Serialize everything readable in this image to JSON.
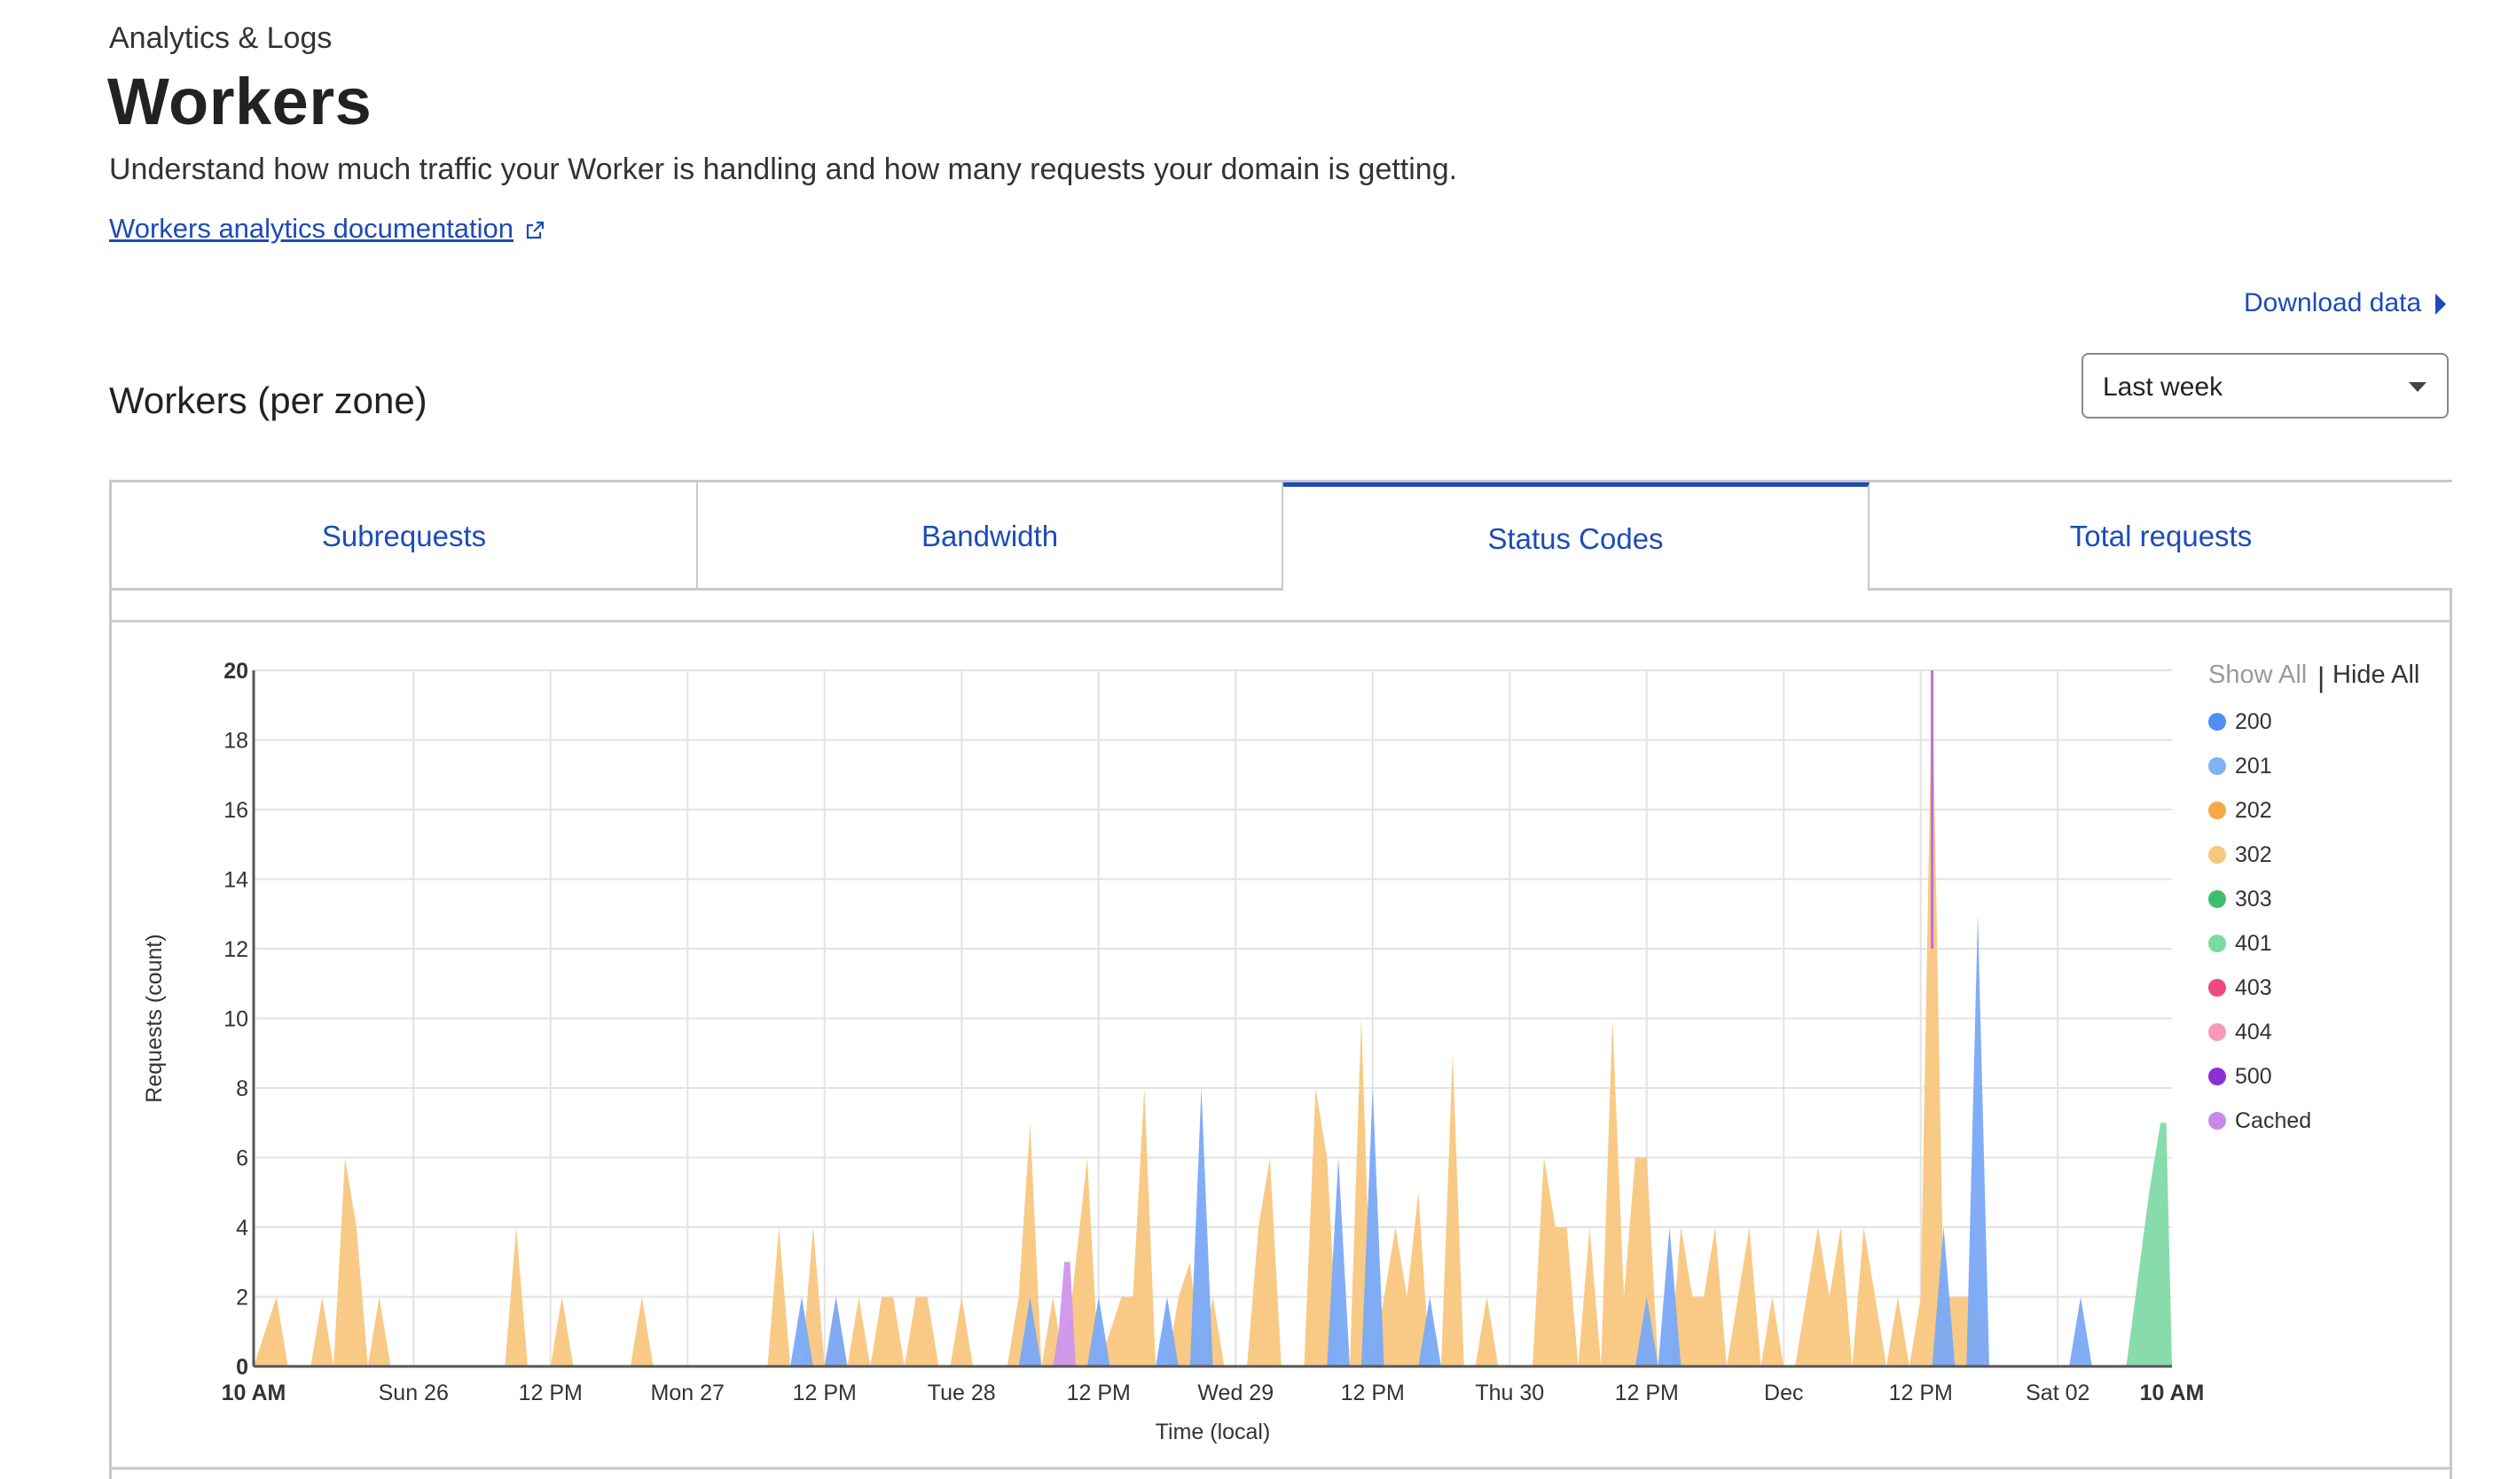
{
  "header": {
    "breadcrumb": "Analytics & Logs",
    "title": "Workers",
    "description": "Understand how much traffic your Worker is handling and how many requests your domain is getting.",
    "doc_link": "Workers analytics documentation",
    "download_label": "Download data"
  },
  "section": {
    "title": "Workers (per zone)",
    "time_range": "Last week"
  },
  "tabs": [
    {
      "label": "Subrequests",
      "active": false
    },
    {
      "label": "Bandwidth",
      "active": false
    },
    {
      "label": "Status Codes",
      "active": true
    },
    {
      "label": "Total requests",
      "active": false
    }
  ],
  "legend": {
    "show_all": "Show All",
    "separator": "|",
    "hide_all": "Hide All",
    "items": [
      {
        "label": "200",
        "color": "#4f8ef7"
      },
      {
        "label": "201",
        "color": "#7fb2f5"
      },
      {
        "label": "202",
        "color": "#f5a843"
      },
      {
        "label": "302",
        "color": "#f8c77e"
      },
      {
        "label": "303",
        "color": "#3cc06e"
      },
      {
        "label": "401",
        "color": "#7adba0"
      },
      {
        "label": "403",
        "color": "#f0497e"
      },
      {
        "label": "404",
        "color": "#f59ab8"
      },
      {
        "label": "500",
        "color": "#8b2fd6"
      },
      {
        "label": "Cached",
        "color": "#c88ae8"
      }
    ]
  },
  "chart_data": {
    "type": "area",
    "ylabel": "Requests (count)",
    "xlabel": "Time (local)",
    "ylim": [
      0,
      20
    ],
    "y_ticks": [
      0,
      2,
      4,
      6,
      8,
      10,
      12,
      14,
      16,
      18,
      20
    ],
    "x_domain": [
      0,
      168
    ],
    "x_ticks": [
      {
        "label": "10 AM",
        "x": 0,
        "bold": true
      },
      {
        "label": "Sun 26",
        "x": 14,
        "bold": false
      },
      {
        "label": "12 PM",
        "x": 26,
        "bold": false
      },
      {
        "label": "Mon 27",
        "x": 38,
        "bold": false
      },
      {
        "label": "12 PM",
        "x": 50,
        "bold": false
      },
      {
        "label": "Tue 28",
        "x": 62,
        "bold": false
      },
      {
        "label": "12 PM",
        "x": 74,
        "bold": false
      },
      {
        "label": "Wed 29",
        "x": 86,
        "bold": false
      },
      {
        "label": "12 PM",
        "x": 98,
        "bold": false
      },
      {
        "label": "Thu 30",
        "x": 110,
        "bold": false
      },
      {
        "label": "12 PM",
        "x": 122,
        "bold": false
      },
      {
        "label": "Dec",
        "x": 134,
        "bold": false
      },
      {
        "label": "12 PM",
        "x": 146,
        "bold": false
      },
      {
        "label": "Sat 02",
        "x": 158,
        "bold": false
      },
      {
        "label": "10 AM",
        "x": 168,
        "bold": true
      }
    ],
    "series": [
      {
        "name": "302",
        "color": "#f8c77e",
        "points": [
          [
            0,
            0
          ],
          [
            2,
            2
          ],
          [
            3,
            0
          ],
          [
            5,
            0
          ],
          [
            6,
            2
          ],
          [
            7,
            0
          ],
          [
            8,
            6
          ],
          [
            9,
            4
          ],
          [
            10,
            0
          ],
          [
            11,
            2
          ],
          [
            12,
            0
          ],
          [
            22,
            0
          ],
          [
            23,
            4
          ],
          [
            24,
            0
          ],
          [
            26,
            0
          ],
          [
            27,
            2
          ],
          [
            28,
            0
          ],
          [
            33,
            0
          ],
          [
            34,
            2
          ],
          [
            35,
            0
          ],
          [
            45,
            0
          ],
          [
            46,
            4
          ],
          [
            47,
            0
          ],
          [
            48,
            0
          ],
          [
            49,
            4
          ],
          [
            50,
            0
          ],
          [
            51,
            2
          ],
          [
            52,
            0
          ],
          [
            53,
            2
          ],
          [
            54,
            0
          ],
          [
            55,
            2
          ],
          [
            56,
            2
          ],
          [
            57,
            0
          ],
          [
            58,
            2
          ],
          [
            59,
            2
          ],
          [
            60,
            0
          ],
          [
            61,
            0
          ],
          [
            62,
            2
          ],
          [
            63,
            0
          ],
          [
            66,
            0
          ],
          [
            67,
            2
          ],
          [
            68,
            7
          ],
          [
            69,
            0
          ],
          [
            70,
            2
          ],
          [
            71,
            0
          ],
          [
            73,
            6
          ],
          [
            74,
            0
          ],
          [
            76,
            2
          ],
          [
            77,
            2
          ],
          [
            78,
            8
          ],
          [
            79,
            0
          ],
          [
            80,
            0
          ],
          [
            81,
            2
          ],
          [
            82,
            3
          ],
          [
            83,
            0
          ],
          [
            84,
            2
          ],
          [
            85,
            0
          ],
          [
            87,
            0
          ],
          [
            88,
            4
          ],
          [
            89,
            6
          ],
          [
            90,
            0
          ],
          [
            92,
            0
          ],
          [
            93,
            8
          ],
          [
            94,
            6
          ],
          [
            95,
            0
          ],
          [
            96,
            0
          ],
          [
            97,
            10
          ],
          [
            98,
            0
          ],
          [
            99,
            2
          ],
          [
            100,
            4
          ],
          [
            101,
            2
          ],
          [
            102,
            5
          ],
          [
            103,
            0
          ],
          [
            104,
            0
          ],
          [
            105,
            9
          ],
          [
            106,
            0
          ],
          [
            107,
            0
          ],
          [
            108,
            2
          ],
          [
            109,
            0
          ],
          [
            112,
            0
          ],
          [
            113,
            6
          ],
          [
            114,
            4
          ],
          [
            115,
            4
          ],
          [
            116,
            0
          ],
          [
            117,
            4
          ],
          [
            118,
            0
          ],
          [
            119,
            10
          ],
          [
            120,
            2
          ],
          [
            121,
            6
          ],
          [
            122,
            6
          ],
          [
            123,
            0
          ],
          [
            124,
            0
          ],
          [
            125,
            4
          ],
          [
            126,
            2
          ],
          [
            127,
            2
          ],
          [
            128,
            4
          ],
          [
            129,
            0
          ],
          [
            130,
            2
          ],
          [
            131,
            4
          ],
          [
            132,
            0
          ],
          [
            133,
            2
          ],
          [
            134,
            0
          ],
          [
            135,
            0
          ],
          [
            136,
            2
          ],
          [
            137,
            4
          ],
          [
            138,
            2
          ],
          [
            139,
            4
          ],
          [
            140,
            0
          ],
          [
            141,
            4
          ],
          [
            142,
            2
          ],
          [
            143,
            0
          ],
          [
            144,
            2
          ],
          [
            145,
            0
          ],
          [
            146,
            2
          ],
          [
            147,
            20
          ],
          [
            148,
            2
          ],
          [
            149,
            2
          ],
          [
            150,
            2
          ],
          [
            151,
            2
          ],
          [
            152,
            0
          ],
          [
            168,
            0
          ]
        ]
      },
      {
        "name": "200",
        "color": "#7aa9f7",
        "points": [
          [
            0,
            0
          ],
          [
            47,
            0
          ],
          [
            48,
            2
          ],
          [
            49,
            0
          ],
          [
            50,
            0
          ],
          [
            51,
            2
          ],
          [
            52,
            0
          ],
          [
            67,
            0
          ],
          [
            68,
            2
          ],
          [
            69,
            0
          ],
          [
            73,
            0
          ],
          [
            74,
            2
          ],
          [
            75,
            0
          ],
          [
            79,
            0
          ],
          [
            80,
            2
          ],
          [
            81,
            0
          ],
          [
            82,
            0
          ],
          [
            83,
            8
          ],
          [
            84,
            0
          ],
          [
            94,
            0
          ],
          [
            95,
            6
          ],
          [
            96,
            0
          ],
          [
            97,
            0
          ],
          [
            98,
            8
          ],
          [
            99,
            0
          ],
          [
            102,
            0
          ],
          [
            103,
            2
          ],
          [
            104,
            0
          ],
          [
            121,
            0
          ],
          [
            122,
            2
          ],
          [
            123,
            0
          ],
          [
            124,
            4
          ],
          [
            125,
            0
          ],
          [
            147,
            0
          ],
          [
            148,
            4
          ],
          [
            149,
            0
          ],
          [
            150,
            0
          ],
          [
            151,
            13
          ],
          [
            152,
            0
          ],
          [
            159,
            0
          ],
          [
            160,
            2
          ],
          [
            161,
            0
          ],
          [
            168,
            0
          ]
        ]
      },
      {
        "name": "Cached",
        "color": "#cf95ec",
        "points": [
          [
            0,
            0
          ],
          [
            70,
            0
          ],
          [
            70.5,
            1
          ],
          [
            71,
            3
          ],
          [
            71.5,
            3
          ],
          [
            72,
            0
          ],
          [
            168,
            0
          ]
        ]
      },
      {
        "name": "401",
        "color": "#82d9a6",
        "points": [
          [
            0,
            0
          ],
          [
            164,
            0
          ],
          [
            166,
            5
          ],
          [
            167,
            7
          ],
          [
            167.5,
            7
          ],
          [
            168,
            0
          ]
        ]
      }
    ]
  }
}
